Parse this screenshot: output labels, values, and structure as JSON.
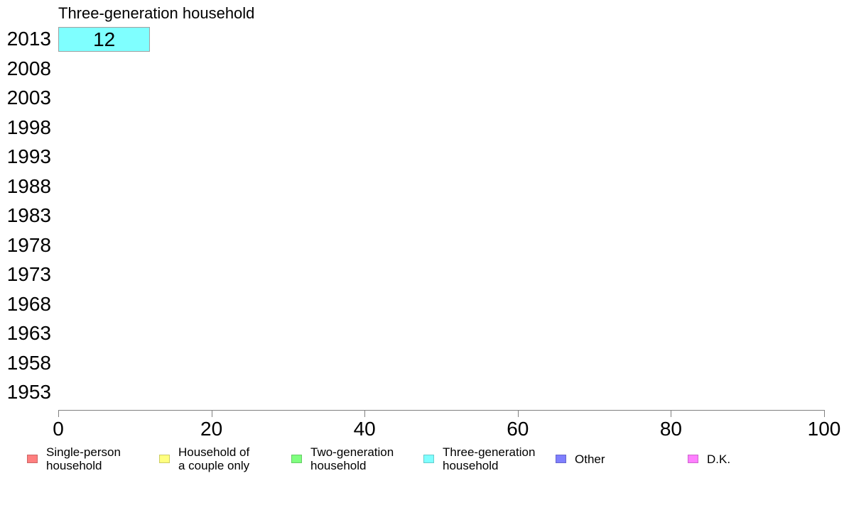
{
  "chart_data": {
    "type": "bar",
    "orientation": "horizontal",
    "stacked": true,
    "title": "Three-generation household",
    "categories": [
      "2013",
      "2008",
      "2003",
      "1998",
      "1993",
      "1988",
      "1983",
      "1978",
      "1973",
      "1968",
      "1963",
      "1958",
      "1953"
    ],
    "series": [
      {
        "name": "Three-generation household",
        "color": "#7FFFFF",
        "border_color": "#A0A0A0",
        "values": [
          12,
          null,
          null,
          null,
          null,
          null,
          null,
          null,
          null,
          null,
          null,
          null,
          null
        ]
      }
    ],
    "xlim": [
      0,
      100
    ],
    "x_ticks": [
      "0",
      "20",
      "40",
      "60",
      "80",
      "100"
    ],
    "grid": false,
    "axis_color": "#808080",
    "text_color": "#000000",
    "background": "#FFFFFF",
    "legend_position": "bottom",
    "legend": [
      {
        "label": "Single-person\nhousehold",
        "color": "#FF7F7F",
        "border_color": "#CC6666"
      },
      {
        "label": "Household of\na couple only",
        "color": "#FFFF7F",
        "border_color": "#CCCC66"
      },
      {
        "label": "Two-generation\nhousehold",
        "color": "#7FFF7F",
        "border_color": "#66CC66"
      },
      {
        "label": "Three-generation\nhousehold",
        "color": "#7FFFFF",
        "border_color": "#66CCCC"
      },
      {
        "label": "Other",
        "color": "#7F7FFF",
        "border_color": "#6666CC"
      },
      {
        "label": "D.K.",
        "color": "#FF7FFF",
        "border_color": "#CC66CC"
      }
    ]
  }
}
